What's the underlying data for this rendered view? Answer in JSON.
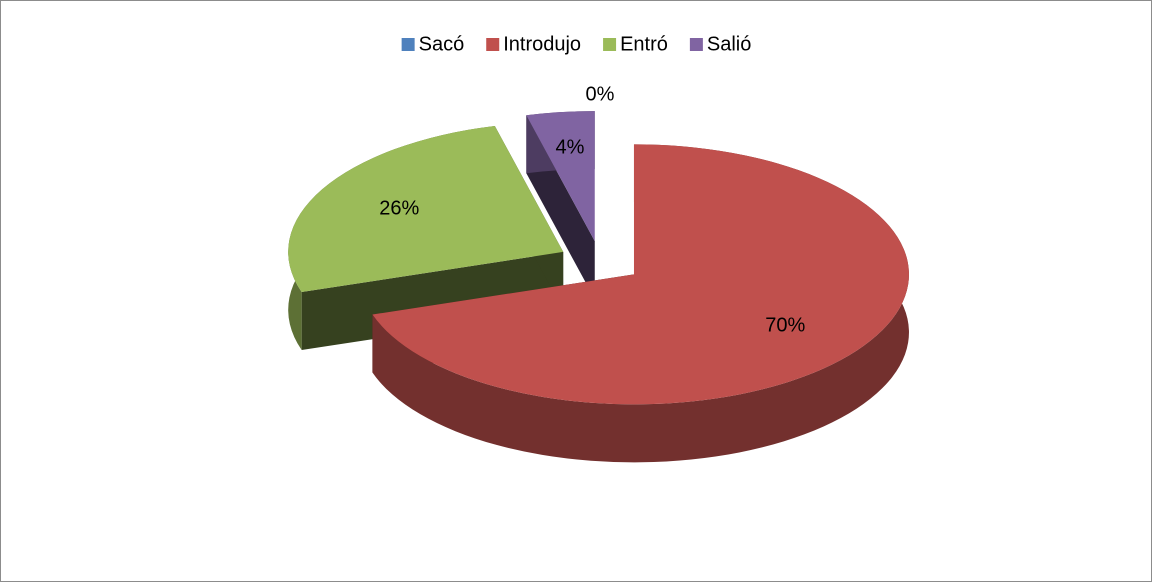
{
  "chart_data": {
    "type": "pie",
    "categories": [
      "Sacó",
      "Introdujo",
      "Entró",
      "Salió"
    ],
    "values": [
      0,
      70,
      26,
      4
    ],
    "value_labels": [
      "0%",
      "70%",
      "26%",
      "4%"
    ],
    "colors": [
      "#4f81bd",
      "#c0504d",
      "#9bbb59",
      "#8064a2"
    ],
    "legend": "top"
  }
}
